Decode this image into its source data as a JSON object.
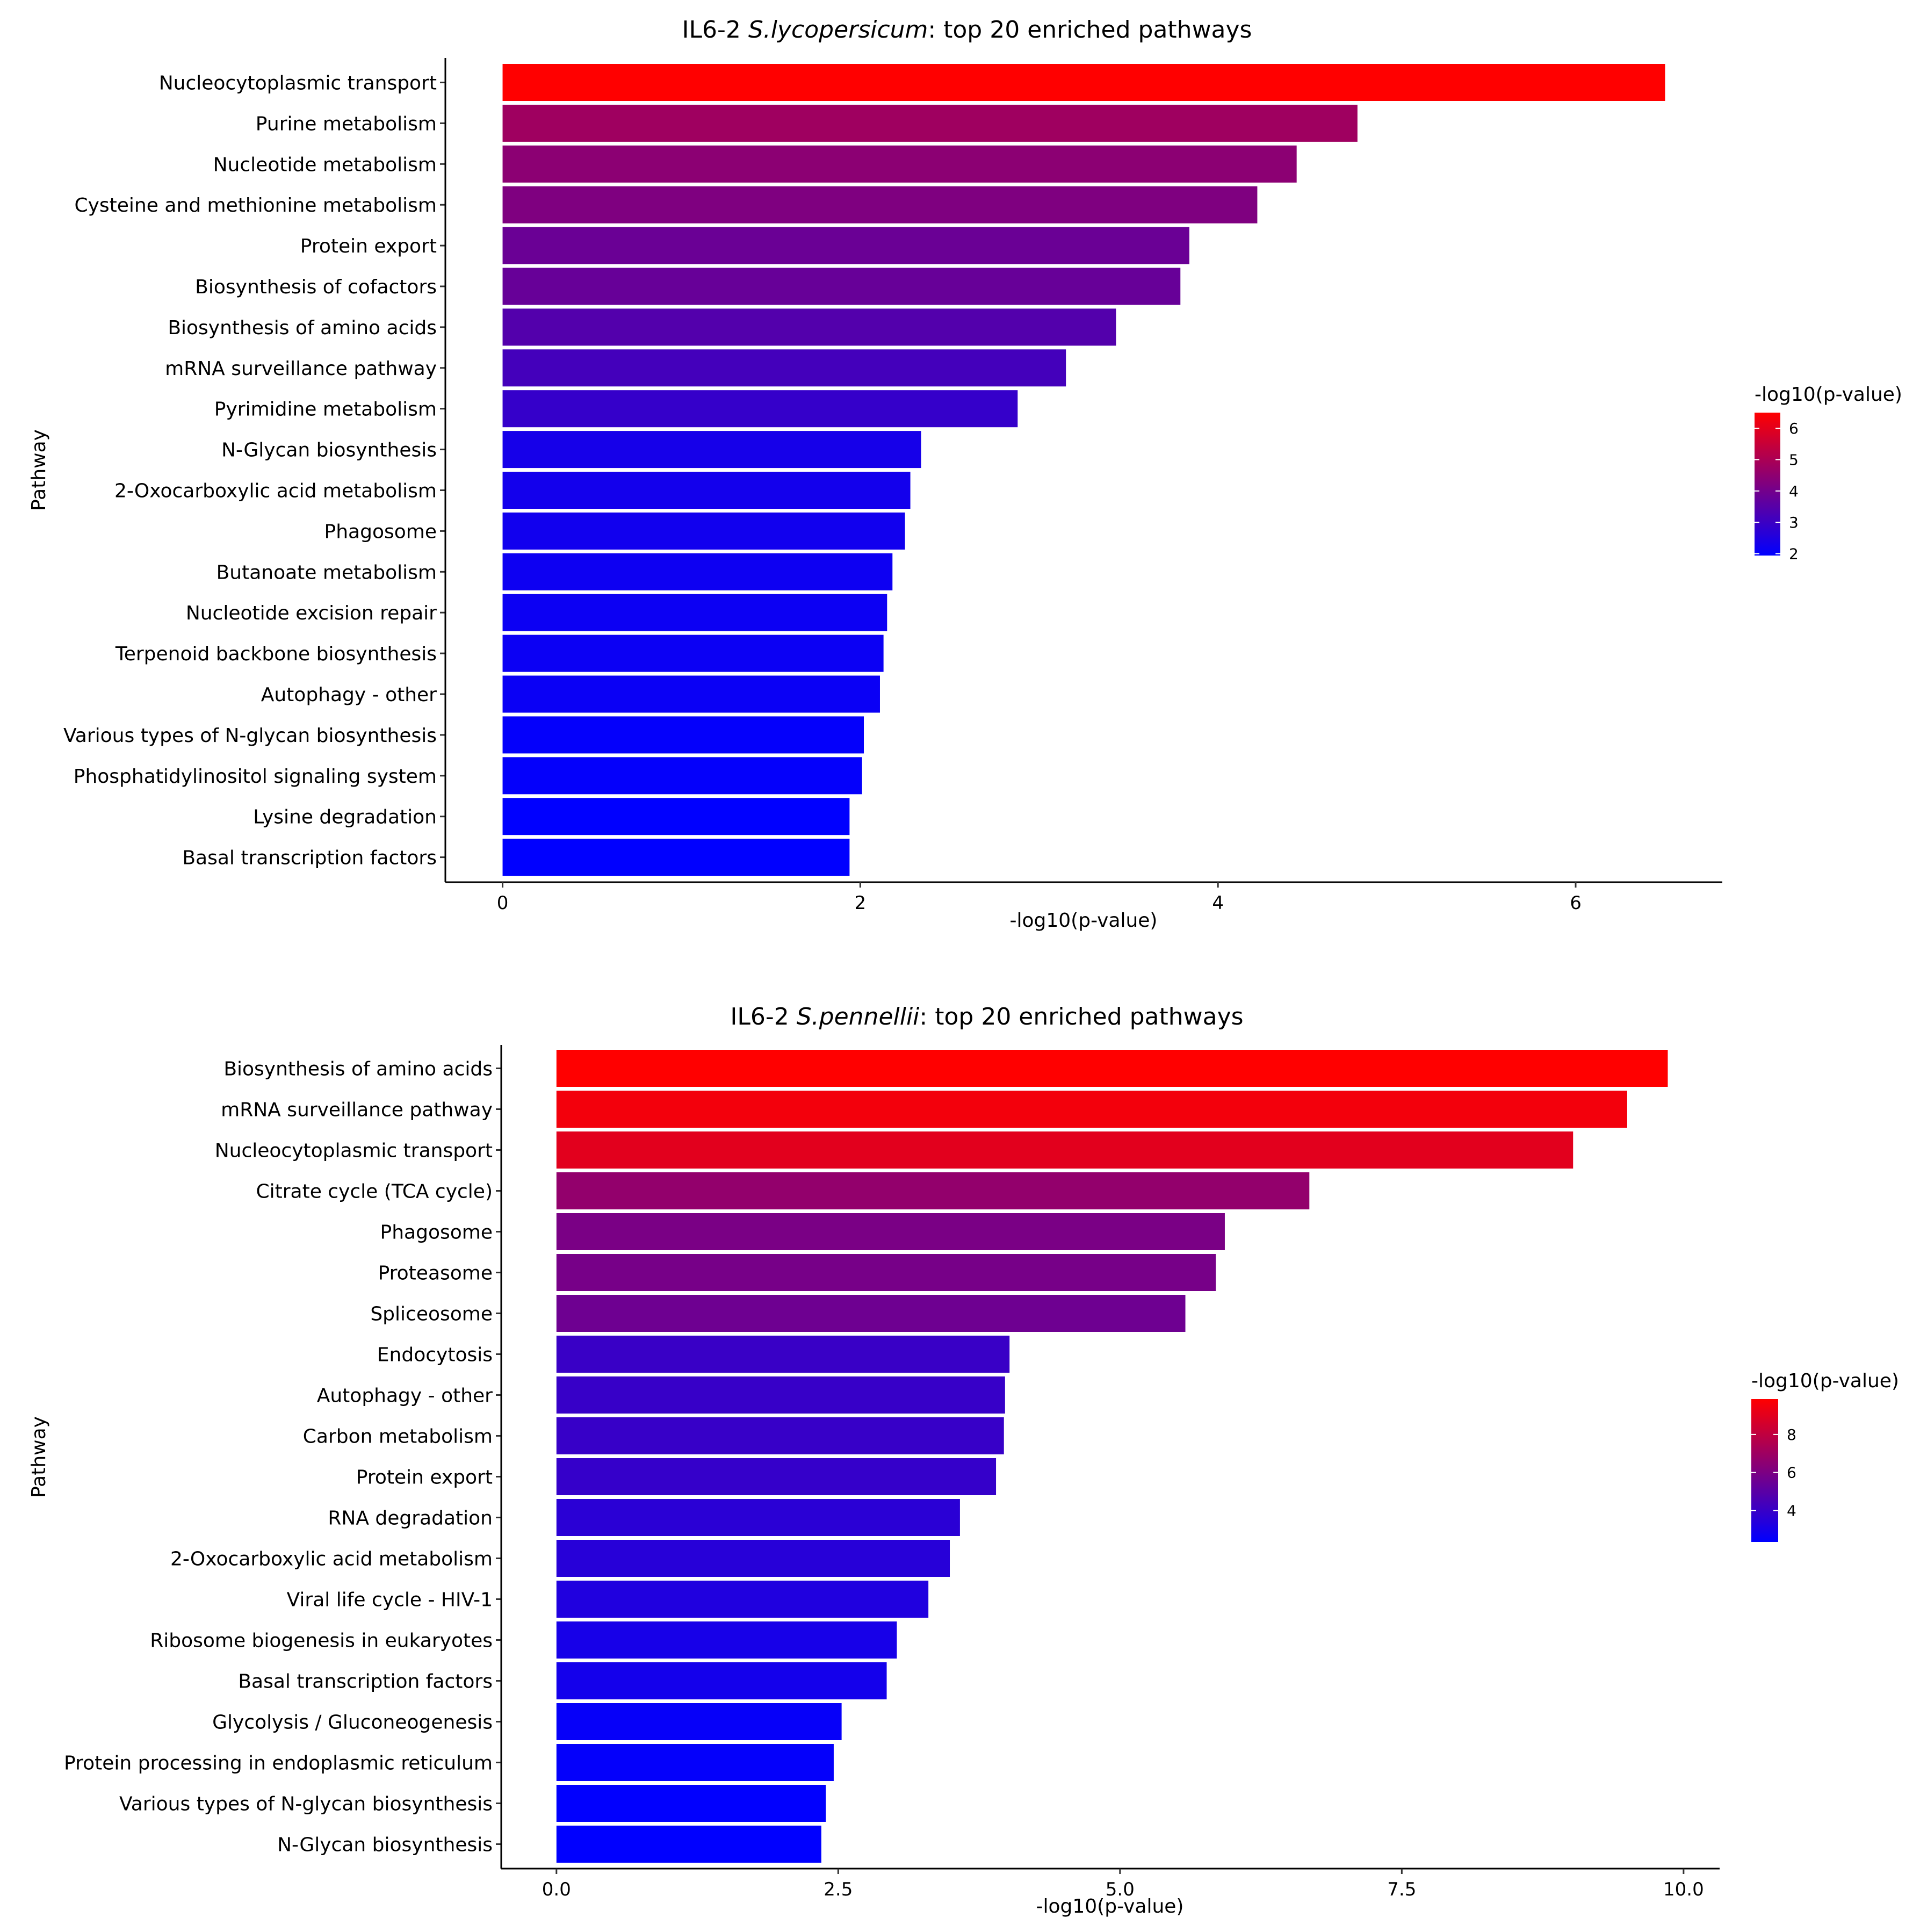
{
  "chart_data": [
    {
      "type": "bar",
      "orientation": "horizontal",
      "title": {
        "prefix": "IL6-2 ",
        "species": "S.lycopersicum",
        "suffix": ": top 20 enriched pathways"
      },
      "xlabel": "-log10(p-value)",
      "ylabel": "Pathway",
      "xlim": [
        -0.32,
        6.82
      ],
      "xticks": [
        0,
        2,
        4,
        6
      ],
      "xtick_labels": [
        "0",
        "2",
        "4",
        "6"
      ],
      "categories": [
        "Nucleocytoplasmic transport",
        "Purine metabolism",
        "Nucleotide metabolism",
        "Cysteine and methionine metabolism",
        "Protein export",
        "Biosynthesis of cofactors",
        "Biosynthesis of amino acids",
        "mRNA surveillance pathway",
        "Pyrimidine metabolism",
        "N-Glycan biosynthesis",
        "2-Oxocarboxylic acid metabolism",
        "Phagosome",
        "Butanoate metabolism",
        "Nucleotide excision repair",
        "Terpenoid backbone biosynthesis",
        "Autophagy - other",
        "Various types of N-glycan biosynthesis",
        "Phosphatidylinositol signaling system",
        "Lysine degradation",
        "Basal transcription factors"
      ],
      "values": [
        6.5,
        4.78,
        4.44,
        4.22,
        3.84,
        3.79,
        3.43,
        3.15,
        2.88,
        2.34,
        2.28,
        2.25,
        2.18,
        2.15,
        2.13,
        2.11,
        2.02,
        2.01,
        1.94,
        1.94
      ],
      "color_scale": {
        "low": "#0000FF",
        "high": "#FF0000",
        "min": 1.94,
        "max": 6.5
      },
      "legend": {
        "title": "-log10(p-value)",
        "position": "right",
        "ticks": [
          2,
          3,
          4,
          5,
          6
        ],
        "tick_labels": [
          "2",
          "3",
          "4",
          "5",
          "6"
        ]
      }
    },
    {
      "type": "bar",
      "orientation": "horizontal",
      "title": {
        "prefix": "IL6-2 ",
        "species": "S.pennellii",
        "suffix": ": top 20 enriched pathways"
      },
      "xlabel": "-log10(p-value)",
      "ylabel": "Pathway",
      "xlim": [
        -0.49,
        10.32
      ],
      "xticks": [
        0,
        2.5,
        5,
        7.5,
        10
      ],
      "xtick_labels": [
        "0.0",
        "2.5",
        "5.0",
        "7.5",
        "10.0"
      ],
      "categories": [
        "Biosynthesis of amino acids",
        "mRNA surveillance pathway",
        "Nucleocytoplasmic transport",
        "Citrate cycle (TCA cycle)",
        "Phagosome",
        "Proteasome",
        "Spliceosome",
        "Endocytosis",
        "Autophagy - other",
        "Carbon metabolism",
        "Protein export",
        "RNA degradation",
        "2-Oxocarboxylic acid metabolism",
        "Viral life cycle - HIV-1",
        "Ribosome biogenesis in eukaryotes",
        "Basal transcription factors",
        "Glycolysis / Gluconeogenesis",
        "Protein processing in endoplasmic reticulum",
        "Various types of N-glycan biosynthesis",
        "N-Glycan biosynthesis"
      ],
      "values": [
        9.86,
        9.5,
        9.02,
        6.68,
        5.93,
        5.85,
        5.58,
        4.02,
        3.98,
        3.97,
        3.9,
        3.58,
        3.49,
        3.3,
        3.02,
        2.93,
        2.53,
        2.46,
        2.39,
        2.35
      ],
      "color_scale": {
        "low": "#0000FF",
        "high": "#FF0000",
        "min": 2.35,
        "max": 9.86
      },
      "legend": {
        "title": "-log10(p-value)",
        "position": "right",
        "ticks": [
          4,
          6,
          8
        ],
        "tick_labels": [
          "4",
          "6",
          "8"
        ]
      }
    }
  ]
}
